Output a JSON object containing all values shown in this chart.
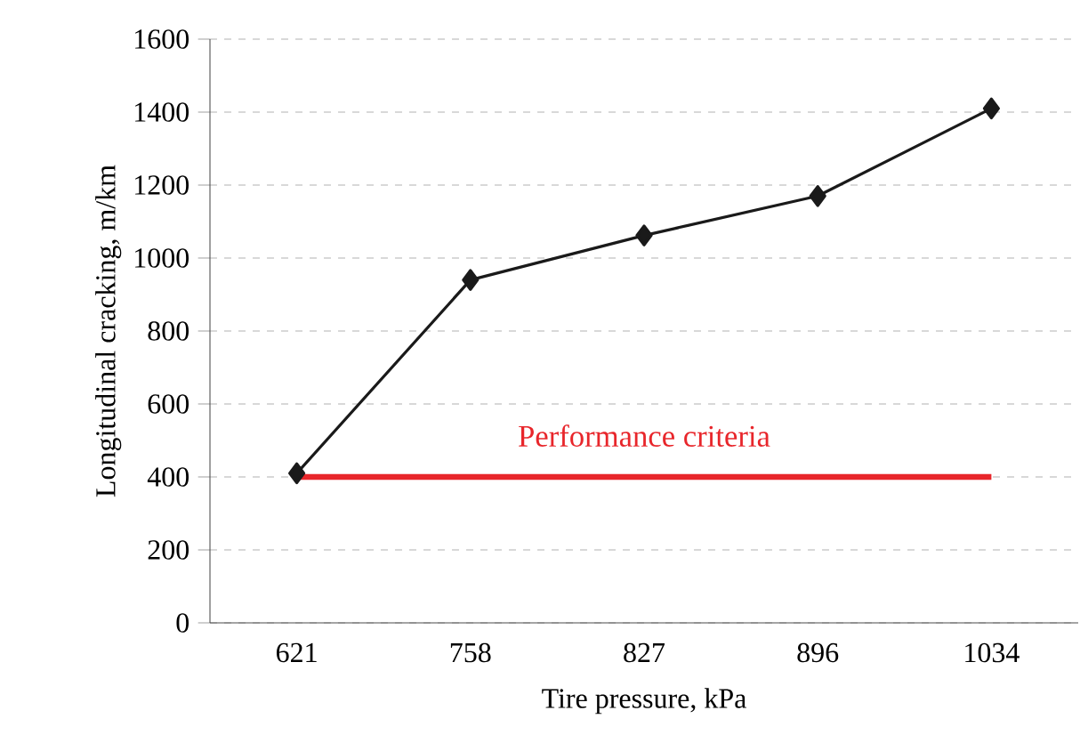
{
  "chart_data": {
    "type": "line",
    "xlabel": "Tire pressure, kPa",
    "ylabel": "Longitudinal cracking, m/km",
    "categories": [
      "621",
      "758",
      "827",
      "896",
      "1034"
    ],
    "series": [
      {
        "color": "#1a1a1a",
        "values": [
          410,
          940,
          1062,
          1170,
          1410
        ]
      }
    ],
    "ylim": [
      0,
      1600
    ],
    "yticks": [
      0,
      200,
      400,
      600,
      800,
      1000,
      1200,
      1400,
      1600
    ],
    "grid": "y",
    "marker": "diamond",
    "line_style": "solid",
    "ref_lines": [
      {
        "axis": "y",
        "value": 400,
        "label": "Performance criteria",
        "color": "#e8262b"
      }
    ]
  }
}
